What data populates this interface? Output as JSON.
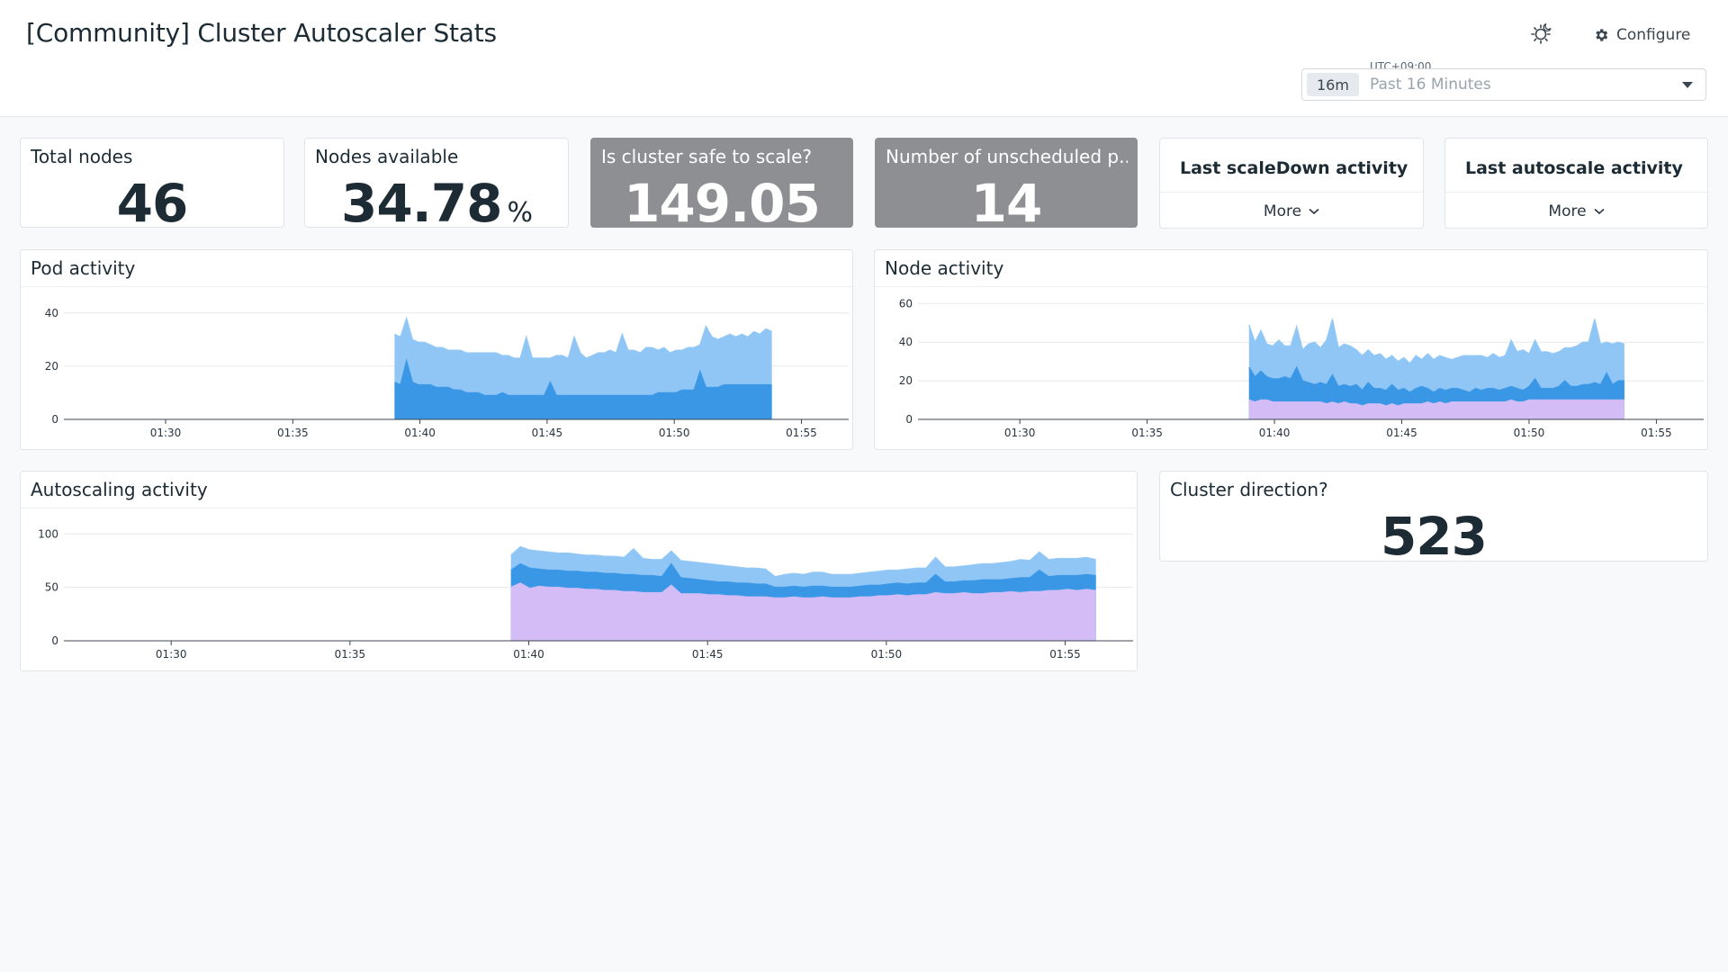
{
  "header": {
    "title": "[Community] Cluster Autoscaler Stats",
    "configure_label": "Configure",
    "timezone": "UTC+09:00",
    "time_chip": "16m",
    "time_range": "Past 16 Minutes"
  },
  "widgets": {
    "total_nodes": {
      "title": "Total nodes",
      "value": "46"
    },
    "nodes_available": {
      "title": "Nodes available",
      "value": "34.78",
      "unit": "%"
    },
    "safe_to_scale": {
      "title": "Is cluster safe to scale?",
      "value": "149.05"
    },
    "unscheduled": {
      "title": "Number of unscheduled p...",
      "value": "14"
    },
    "last_scaledown": {
      "title": "Last scaleDown activity",
      "more_label": "More"
    },
    "last_autoscale": {
      "title": "Last autoscale activity",
      "more_label": "More"
    },
    "cluster_direction": {
      "title": "Cluster direction?",
      "value": "523"
    }
  },
  "colors": {
    "light_blue": "#90c6f5",
    "blue": "#3a97e6",
    "lavender": "#d4bdf6",
    "gray_tile": "#8e8f93"
  },
  "chart_data": [
    {
      "id": "pod",
      "title": "Pod activity",
      "type": "area",
      "x_ticks": [
        "01:30",
        "01:35",
        "01:40",
        "01:45",
        "01:50",
        "01:55"
      ],
      "x_range": [
        "01:26",
        "01:57"
      ],
      "data_start": "01:39",
      "y_ticks": [
        0,
        20,
        40
      ],
      "ylim": [
        0,
        45
      ],
      "series": [
        {
          "color": "#3a97e6",
          "values": [
            14,
            13,
            22,
            14,
            13,
            13,
            13,
            12,
            12,
            12,
            11,
            11,
            10,
            10,
            10,
            9,
            9,
            9,
            10,
            9,
            9,
            9,
            9,
            9,
            9,
            9,
            14,
            9,
            9,
            9,
            9,
            9,
            9,
            9,
            9,
            9,
            9,
            9,
            9,
            9,
            9,
            9,
            9,
            9,
            10,
            10,
            10,
            10,
            11,
            11,
            11,
            18,
            12,
            12,
            12,
            13,
            13,
            13,
            13,
            13,
            13,
            13,
            13,
            13
          ]
        },
        {
          "color": "#90c6f5",
          "values": [
            32,
            31,
            38,
            30,
            29,
            29,
            28,
            27,
            27,
            26,
            26,
            26,
            25,
            25,
            25,
            25,
            25,
            25,
            24,
            24,
            23,
            23,
            31,
            23,
            23,
            23,
            23,
            24,
            24,
            23,
            31,
            25,
            23,
            24,
            25,
            25,
            26,
            25,
            32,
            26,
            26,
            25,
            27,
            27,
            26,
            27,
            25,
            26,
            26,
            27,
            27,
            28,
            35,
            31,
            30,
            31,
            32,
            31,
            32,
            31,
            33,
            32,
            34,
            33
          ]
        }
      ]
    },
    {
      "id": "node",
      "title": "Node activity",
      "type": "area",
      "x_ticks": [
        "01:30",
        "01:35",
        "01:40",
        "01:45",
        "01:50",
        "01:55"
      ],
      "x_range": [
        "01:26",
        "01:57"
      ],
      "data_start": "01:39",
      "y_ticks": [
        0,
        20,
        40,
        60
      ],
      "ylim": [
        0,
        62
      ],
      "series": [
        {
          "color": "#d4bdf6",
          "values": [
            10,
            9,
            10,
            10,
            9,
            9,
            9,
            9,
            9,
            9,
            9,
            9,
            9,
            8,
            9,
            8,
            9,
            8,
            8,
            7,
            8,
            8,
            8,
            7,
            8,
            7,
            8,
            8,
            8,
            8,
            9,
            8,
            9,
            8,
            9,
            9,
            9,
            9,
            9,
            9,
            9,
            9,
            9,
            9,
            10,
            9,
            9,
            10,
            10,
            10,
            10,
            10,
            10,
            10,
            10,
            10,
            10,
            10,
            10,
            10,
            10,
            10,
            10,
            10
          ]
        },
        {
          "color": "#3a97e6",
          "values": [
            27,
            22,
            25,
            22,
            21,
            21,
            22,
            21,
            27,
            20,
            19,
            18,
            19,
            18,
            23,
            17,
            18,
            17,
            18,
            15,
            19,
            16,
            16,
            15,
            18,
            15,
            16,
            14,
            16,
            17,
            16,
            14,
            16,
            15,
            16,
            16,
            15,
            14,
            16,
            15,
            16,
            16,
            15,
            16,
            17,
            16,
            15,
            17,
            21,
            16,
            16,
            16,
            17,
            20,
            17,
            17,
            18,
            18,
            19,
            18,
            24,
            18,
            20,
            20
          ]
        },
        {
          "color": "#90c6f5",
          "values": [
            49,
            40,
            46,
            39,
            38,
            41,
            38,
            38,
            48,
            36,
            39,
            40,
            37,
            41,
            52,
            37,
            39,
            38,
            36,
            33,
            36,
            33,
            34,
            31,
            33,
            30,
            32,
            29,
            33,
            31,
            34,
            31,
            33,
            32,
            31,
            32,
            33,
            33,
            33,
            33,
            32,
            34,
            32,
            33,
            41,
            35,
            36,
            34,
            41,
            35,
            35,
            34,
            35,
            37,
            37,
            38,
            40,
            40,
            52,
            39,
            40,
            39,
            40,
            39
          ]
        }
      ]
    },
    {
      "id": "autoscaling",
      "title": "Autoscaling activity",
      "type": "area",
      "x_ticks": [
        "01:30",
        "01:35",
        "01:40",
        "01:45",
        "01:50",
        "01:55"
      ],
      "x_range": [
        "01:27",
        "01:57"
      ],
      "data_start": "01:39.5",
      "y_ticks": [
        0,
        50,
        100
      ],
      "ylim": [
        0,
        112
      ],
      "series": [
        {
          "color": "#d4bdf6",
          "values": [
            50,
            54,
            49,
            51,
            50,
            50,
            49,
            49,
            48,
            48,
            47,
            47,
            46,
            46,
            45,
            45,
            45,
            52,
            44,
            44,
            44,
            43,
            43,
            42,
            42,
            41,
            41,
            41,
            40,
            40,
            41,
            40,
            40,
            41,
            40,
            40,
            40,
            41,
            41,
            42,
            42,
            43,
            42,
            43,
            43,
            45,
            44,
            44,
            45,
            44,
            44,
            45,
            45,
            46,
            45,
            46,
            46,
            47,
            47,
            48,
            47,
            48,
            47
          ]
        },
        {
          "color": "#3a97e6",
          "values": [
            66,
            72,
            68,
            67,
            66,
            66,
            65,
            65,
            64,
            64,
            63,
            63,
            62,
            62,
            61,
            61,
            60,
            72,
            59,
            58,
            57,
            56,
            55,
            55,
            54,
            54,
            53,
            53,
            50,
            50,
            51,
            50,
            51,
            51,
            50,
            50,
            50,
            51,
            52,
            52,
            53,
            54,
            53,
            54,
            54,
            62,
            55,
            55,
            56,
            56,
            57,
            57,
            57,
            58,
            59,
            59,
            66,
            60,
            61,
            61,
            61,
            62,
            61
          ]
        },
        {
          "color": "#90c6f5",
          "values": [
            80,
            88,
            85,
            84,
            83,
            82,
            82,
            81,
            80,
            80,
            79,
            79,
            78,
            86,
            77,
            76,
            76,
            84,
            75,
            74,
            73,
            72,
            71,
            70,
            69,
            68,
            68,
            67,
            60,
            62,
            63,
            62,
            64,
            64,
            62,
            62,
            62,
            63,
            64,
            65,
            66,
            66,
            67,
            68,
            68,
            78,
            69,
            69,
            70,
            71,
            72,
            72,
            73,
            74,
            76,
            75,
            83,
            76,
            77,
            77,
            77,
            78,
            76
          ]
        }
      ]
    }
  ]
}
